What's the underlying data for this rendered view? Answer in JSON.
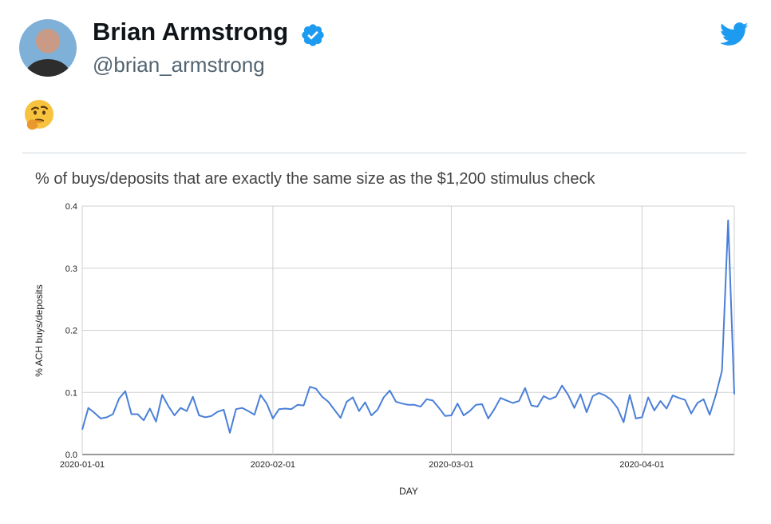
{
  "tweet": {
    "author_name": "Brian Armstrong",
    "author_handle": "@brian_armstrong",
    "verified": true,
    "emoji": "🤔",
    "brand_color": "#1d9bf0"
  },
  "chart_data": {
    "type": "line",
    "title": "% of buys/deposits that are exactly the same size as the $1,200 stimulus check",
    "xlabel": "DAY",
    "ylabel": "% ACH buys/deposits",
    "ylim": [
      0,
      0.4
    ],
    "yticks": [
      "0.0",
      "0.1",
      "0.2",
      "0.3",
      "0.4"
    ],
    "xticks": [
      "2020-01-01",
      "2020-02-01",
      "2020-03-01",
      "2020-04-01"
    ],
    "grid": true,
    "line_color": "#4a7fd8",
    "series": [
      {
        "x_start": "2020-01-01",
        "values": [
          0.04,
          0.075,
          0.067,
          0.058,
          0.06,
          0.065,
          0.09,
          0.102,
          0.065,
          0.065,
          0.055,
          0.074,
          0.053,
          0.096,
          0.078,
          0.063,
          0.075,
          0.07,
          0.093,
          0.063,
          0.06,
          0.062,
          0.069,
          0.072,
          0.035,
          0.073,
          0.075,
          0.07,
          0.064,
          0.096,
          0.082,
          0.058,
          0.073,
          0.074,
          0.073,
          0.08,
          0.079,
          0.109,
          0.106,
          0.093,
          0.085,
          0.072,
          0.059,
          0.085,
          0.092,
          0.07,
          0.084,
          0.063,
          0.072,
          0.092,
          0.103,
          0.085,
          0.082,
          0.08,
          0.08,
          0.077,
          0.089,
          0.087,
          0.075,
          0.062,
          0.063,
          0.082,
          0.063,
          0.07,
          0.08,
          0.081,
          0.058,
          0.073,
          0.091,
          0.087,
          0.083,
          0.086,
          0.107,
          0.079,
          0.077,
          0.094,
          0.089,
          0.093,
          0.111,
          0.096,
          0.075,
          0.097,
          0.068,
          0.094,
          0.099,
          0.095,
          0.088,
          0.075,
          0.052,
          0.096,
          0.058,
          0.06,
          0.092,
          0.071,
          0.086,
          0.074,
          0.095,
          0.091,
          0.088,
          0.066,
          0.083,
          0.089,
          0.064,
          0.096,
          0.135,
          0.377,
          0.097
        ]
      }
    ]
  }
}
